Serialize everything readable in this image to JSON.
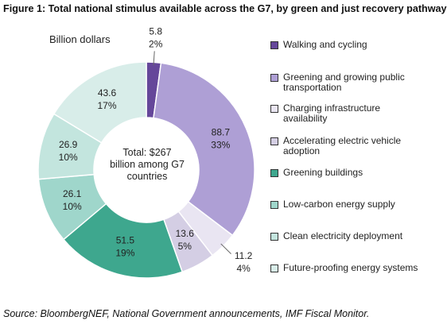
{
  "chart_data": {
    "type": "pie",
    "title": "Figure 1: Total national stimulus available across the G7, by green and just recovery pathway",
    "subtitle": "Billion dollars",
    "center_text": "Total: $267 billion among G7 countries",
    "source": "Source: BloombergNEF, National Government announcements, IMF Fiscal Monitor.",
    "categories": [
      "Walking and cycling",
      "Greening and growing public transportation",
      "Charging infrastructure availability",
      "Accelerating electric vehicle adoption",
      "Greening buildings",
      "Low-carbon energy supply",
      "Clean electricity deployment",
      "Future-proofing energy systems"
    ],
    "values": [
      5.8,
      88.7,
      11.2,
      13.6,
      51.5,
      26.1,
      26.9,
      43.6
    ],
    "share_labels": [
      "2%",
      "33%",
      "4%",
      "5%",
      "19%",
      "10%",
      "10%",
      "17%"
    ],
    "colors": [
      "#65479a",
      "#ae9fd5",
      "#e9e5f2",
      "#d4cee4",
      "#3ea78e",
      "#9fd6cb",
      "#c3e5de",
      "#d8ede9"
    ],
    "legend": "right"
  }
}
